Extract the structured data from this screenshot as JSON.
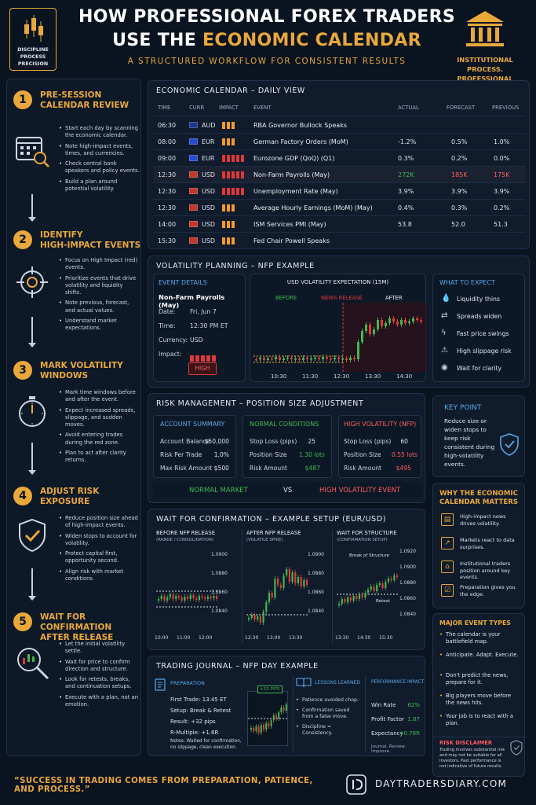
{
  "header": {
    "logo_text": [
      "DISCIPLINE",
      "PROCESS",
      "PRECISION"
    ],
    "title_line1": "HOW PROFESSIONAL FOREX TRADERS",
    "title_line2_a": "USE THE ",
    "title_line2_b": "ECONOMIC CALENDAR",
    "subtitle": "A STRUCTURED WORKFLOW FOR CONSISTENT RESULTS",
    "institutional": [
      "INSTITUTIONAL PROCESS.",
      "PROFESSIONAL RESULTS."
    ]
  },
  "steps": [
    {
      "num": "1",
      "title": [
        "PRE-SESSION",
        "CALENDAR REVIEW"
      ],
      "icon": "calendar-search-icon",
      "bullets": [
        "Start each day by scanning the economic calendar.",
        "Note high-impact events, times, and currencies.",
        "Check central bank speakers and policy events.",
        "Build a plan around potential volatility."
      ]
    },
    {
      "num": "2",
      "title": [
        "IDENTIFY",
        "HIGH-IMPACT EVENTS"
      ],
      "icon": "target-icon",
      "bullets": [
        "Focus on High Impact (red) events.",
        "Prioritize events that drive volatility and liquidity shifts.",
        "Note previous, forecast, and actual values.",
        "Understand market expectations."
      ]
    },
    {
      "num": "3",
      "title": [
        "MARK VOLATILITY",
        "WINDOWS"
      ],
      "icon": "stopwatch-icon",
      "bullets": [
        "Mark time windows before and after the event.",
        "Expect increased spreads, slippage, and sudden moves.",
        "Avoid entering trades during the red zone.",
        "Plan to act after clarity returns."
      ]
    },
    {
      "num": "4",
      "title": [
        "ADJUST RISK",
        "EXPOSURE"
      ],
      "icon": "shield-check-icon",
      "bullets": [
        "Reduce position size ahead of high-impact events.",
        "Widen stops to account for volatility.",
        "Protect capital first, opportunity second.",
        "Align risk with market conditions."
      ]
    },
    {
      "num": "5",
      "title": [
        "WAIT FOR CONFIRMATION",
        "AFTER RELEASE"
      ],
      "icon": "magnifier-chart-icon",
      "bullets": [
        "Let the initial volatility settle.",
        "Wait for price to confirm direction and structure.",
        "Look for retests, breaks, and continuation setups.",
        "Execute with a plan, not an emotion."
      ]
    }
  ],
  "calendar": {
    "title": "ECONOMIC CALENDAR – DAILY VIEW",
    "headers": {
      "time": "TIME",
      "curr": "CURR",
      "impact": "IMPACT",
      "event": "EVENT",
      "actual": "ACTUAL",
      "forecast": "FORECAST",
      "previous": "PREVIOUS"
    },
    "rows": [
      {
        "time": "06:30",
        "curr": "AUD",
        "impact": 3,
        "color": "#f39c2b",
        "event": "RBA Governor Bullock Speaks",
        "actual": "",
        "forecast": "",
        "previous": "",
        "hl": false
      },
      {
        "time": "08:00",
        "curr": "EUR",
        "impact": 3,
        "color": "#f39c2b",
        "event": "German Factory Orders (MoM)",
        "actual": "-1.2%",
        "forecast": "0.5%",
        "previous": "1.0%",
        "hl": false
      },
      {
        "time": "09:00",
        "curr": "EUR",
        "impact": 5,
        "color": "#e0383b",
        "event": "Eurozone GDP (QoQ) (Q1)",
        "actual": "0.3%",
        "forecast": "0.2%",
        "previous": "0.0%",
        "hl": false
      },
      {
        "time": "12:30",
        "curr": "USD",
        "impact": 5,
        "color": "#e0383b",
        "event": "Non-Farm Payrolls (May)",
        "actual": "272K",
        "forecast": "185K",
        "previous": "175K",
        "hl": true
      },
      {
        "time": "12:30",
        "curr": "USD",
        "impact": 5,
        "color": "#e0383b",
        "event": "Unemployment Rate (May)",
        "actual": "3.9%",
        "forecast": "3.9%",
        "previous": "3.9%",
        "hl": false
      },
      {
        "time": "12:30",
        "curr": "USD",
        "impact": 3,
        "color": "#f39c2b",
        "event": "Average Hourly Earnings (MoM) (May)",
        "actual": "0.4%",
        "forecast": "0.3%",
        "previous": "0.2%",
        "hl": false
      },
      {
        "time": "14:00",
        "curr": "USD",
        "impact": 3,
        "color": "#f39c2b",
        "event": "ISM Services PMI (May)",
        "actual": "53.8",
        "forecast": "52.0",
        "previous": "51.3",
        "hl": false
      },
      {
        "time": "15:30",
        "curr": "USD",
        "impact": 3,
        "color": "#f39c2b",
        "event": "Fed Chair Powell Speaks",
        "actual": "",
        "forecast": "",
        "previous": "",
        "hl": false
      }
    ]
  },
  "volatility": {
    "title": "VOLATILITY PLANNING – NFP EXAMPLE",
    "event_details_title": "EVENT DETAILS",
    "event_name": "Non-Farm Payrolls (May)",
    "date_label": "Date:",
    "date_value": "Fri, Jun 7",
    "time_label": "Time:",
    "time_value": "12:30 PM ET",
    "currency_label": "Currency:",
    "currency_value": "USD",
    "impact_label": "Impact:",
    "impact_value": "HIGH",
    "chart_title": "USD VOLATILITY EXPECTATION (15M)",
    "phase_before": "BEFORE",
    "phase_release": "NEWS RELEASE",
    "phase_after": "AFTER",
    "x_ticks": [
      "10:30",
      "11:30",
      "12:30",
      "13:30",
      "14:30"
    ],
    "expect_title": "WHAT TO EXPECT",
    "expect": [
      {
        "icon": "droplet-icon",
        "text": "Liquidity thins"
      },
      {
        "icon": "spread-arrows-icon",
        "text": "Spreads widen"
      },
      {
        "icon": "lightning-icon",
        "text": "Fast price swings"
      },
      {
        "icon": "warning-icon",
        "text": "High slippage risk"
      },
      {
        "icon": "eye-icon",
        "text": "Wait for clarity"
      }
    ]
  },
  "risk": {
    "title": "RISK MANAGEMENT – POSITION SIZE ADJUSTMENT",
    "account": {
      "title": "ACCOUNT SUMMARY",
      "rows": [
        [
          "Account Balance",
          "$50,000"
        ],
        [
          "Risk Per Trade",
          "1.0%"
        ],
        [
          "Max Risk Amount",
          "$500"
        ]
      ]
    },
    "normal": {
      "title": "NORMAL CONDITIONS",
      "rows": [
        [
          "Stop Loss (pips)",
          "25"
        ],
        [
          "Position Size",
          "1.30 lots"
        ],
        [
          "Risk Amount",
          "$487"
        ]
      ]
    },
    "high": {
      "title": "HIGH VOLATILITY (NFP)",
      "rows": [
        [
          "Stop Loss (pips)",
          "60"
        ],
        [
          "Position Size",
          "0.55 lots"
        ],
        [
          "Risk Amount",
          "$495"
        ]
      ]
    },
    "normal_market": "NORMAL MARKET",
    "vs": "VS",
    "high_event": "HIGH VOLATILITY EVENT"
  },
  "key_point": {
    "title": "KEY POINT",
    "text": "Reduce size or widen stops to keep risk consistent during high-volatility events."
  },
  "why": {
    "title": [
      "WHY THE ECONOMIC",
      "CALENDAR MATTERS"
    ],
    "items": [
      {
        "icon": "news-icon",
        "text": "High-impact news drives volatility."
      },
      {
        "icon": "trend-icon",
        "text": "Markets react to data surprises."
      },
      {
        "icon": "bank-icon",
        "text": "Institutional traders position around key events."
      },
      {
        "icon": "checklist-icon",
        "text": "Preparation gives you the edge."
      }
    ]
  },
  "major": {
    "title": "MAJOR EVENT TYPES",
    "items": [
      "The calendar is your battlefield map.",
      "Anticipate. Adapt. Execute.",
      "Don't predict the news, prepare for it.",
      "Big players move before the news hits.",
      "Your job is to react with a plan."
    ],
    "disclaimer_title": "RISK DISCLAIMER",
    "disclaimer": "Trading involves substantial risk and may not be suitable for all investors. Past performance is not indicative of future results."
  },
  "confirmation": {
    "title": "WAIT FOR CONFIRMATION – EXAMPLE SETUP (EUR/USD)",
    "panels": [
      {
        "title": "BEFORE NFP RELEASE",
        "sub": "(RANGE / CONSOLIDATION)",
        "x": [
          "10:00",
          "11:00",
          "12:00"
        ]
      },
      {
        "title": "AFTER NFP RELEASE",
        "sub": "(VOLATILE SPIKE)",
        "x": [
          "12:30",
          "13:00",
          "13:30"
        ]
      },
      {
        "title": "WAIT FOR STRUCTURE",
        "sub": "(CONFIRMATION SETUP)",
        "x": [
          "13:30",
          "14:30",
          "15:30"
        ]
      }
    ],
    "y1": [
      "1.0900",
      "1.0880",
      "1.0860",
      "1.0840"
    ],
    "y3": [
      "1.0920",
      "1.0900",
      "1.0880",
      "1.0860",
      "1.0840"
    ],
    "break_label": "Break of Structure",
    "retest_label": "Retest"
  },
  "journal": {
    "title": "TRADING JOURNAL – NFP DAY EXAMPLE",
    "prep_title": "PREPARATION",
    "prep": [
      "First Trade: 13:45 ET",
      "Setup: Break & Retest",
      "Result: +32 pips",
      "R-Multiple: +1.6R"
    ],
    "notes": "Notes: Waited for confirmation, no slippage, clean execution.",
    "pips_badge": "+32 PIPS",
    "lessons_title": "LESSONS LEARNED",
    "lessons": [
      "Patience avoided chop.",
      "Confirmation saved from a false move.",
      "Discipline = Consistency."
    ],
    "perf_title": "PERFORMANCE IMPACT",
    "perf": [
      [
        "Win Rate",
        "62%"
      ],
      [
        "Profit Factor",
        "1.87"
      ],
      [
        "Expectancy",
        "+0.78R"
      ]
    ],
    "perf_foot": "Journal. Review. Improve."
  },
  "footer": {
    "quote": "“SUCCESS IN TRADING COMES FROM PREPARATION, PATIENCE, AND PROCESS.”",
    "site": "DAYTRADERSDIARY.COM"
  }
}
